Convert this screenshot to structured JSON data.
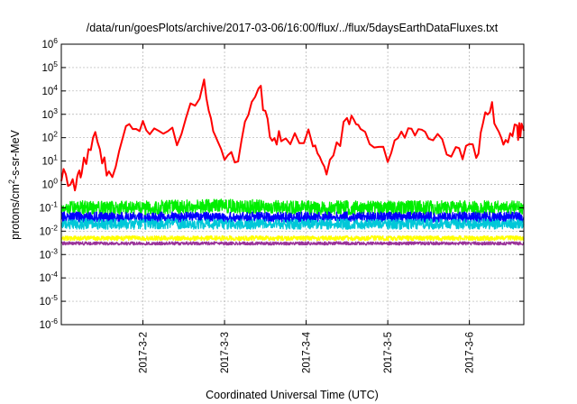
{
  "chart_data": {
    "type": "line",
    "title": "/data/run/goesPlots/archive/2017-03-06/16:00/flux/../flux/5daysEarthDataFluxes.txt",
    "xlabel": "Coordinated Universal Time (UTC)",
    "ylabel_main": "protons/cm",
    "ylabel_sup": "2",
    "ylabel_rest": "-s-sr-MeV",
    "y_scale": "log",
    "ylim": [
      1e-06,
      1000000.0
    ],
    "y_ticks": [
      {
        "value": 1e-06,
        "base": "10",
        "exp": "-6"
      },
      {
        "value": 1e-05,
        "base": "10",
        "exp": "-5"
      },
      {
        "value": 0.0001,
        "base": "10",
        "exp": "-4"
      },
      {
        "value": 0.001,
        "base": "10",
        "exp": "-3"
      },
      {
        "value": 0.01,
        "base": "10",
        "exp": "-2"
      },
      {
        "value": 0.1,
        "base": "10",
        "exp": "-1"
      },
      {
        "value": 1,
        "base": "10",
        "exp": "0"
      },
      {
        "value": 10,
        "base": "10",
        "exp": "1"
      },
      {
        "value": 100,
        "base": "10",
        "exp": "2"
      },
      {
        "value": 1000,
        "base": "10",
        "exp": "3"
      },
      {
        "value": 10000,
        "base": "10",
        "exp": "4"
      },
      {
        "value": 100000,
        "base": "10",
        "exp": "5"
      },
      {
        "value": 1000000,
        "base": "10",
        "exp": "6"
      }
    ],
    "xlim": [
      "2017-03-01 00:00",
      "2017-03-06 16:00"
    ],
    "x_ticks": [
      {
        "value": "2017-03-02 00:00",
        "label": "2017-3-2"
      },
      {
        "value": "2017-03-03 00:00",
        "label": "2017-3-3"
      },
      {
        "value": "2017-03-04 00:00",
        "label": "2017-3-4"
      },
      {
        "value": "2017-03-05 00:00",
        "label": "2017-3-5"
      },
      {
        "value": "2017-03-06 00:00",
        "label": "2017-3-6"
      }
    ],
    "grid": true,
    "legend": "none",
    "series": [
      {
        "color": "#ff0000",
        "x": [
          "2017-03-01 00:00",
          "2017-03-01 04:00",
          "2017-03-01 06:00",
          "2017-03-01 10:00",
          "2017-03-01 14:00",
          "2017-03-01 20:00",
          "2017-03-02 02:00",
          "2017-03-02 10:00",
          "2017-03-02 18:00",
          "2017-03-02 22:00",
          "2017-03-03 04:00",
          "2017-03-03 10:00",
          "2017-03-03 14:00",
          "2017-03-03 18:00",
          "2017-03-04 02:00",
          "2017-03-04 06:00",
          "2017-03-04 12:00",
          "2017-03-04 16:00",
          "2017-03-05 00:00",
          "2017-03-05 06:00",
          "2017-03-05 12:00",
          "2017-03-05 20:00",
          "2017-03-06 02:00",
          "2017-03-06 06:00",
          "2017-03-06 10:00",
          "2017-03-06 14:00",
          "2017-03-06 16:00"
        ],
        "y": [
          3,
          1,
          5,
          100,
          2,
          300,
          200,
          100,
          20000,
          30,
          20,
          20000,
          100,
          80,
          100,
          2,
          500,
          300,
          20,
          200,
          100,
          30,
          20,
          3000,
          50,
          200,
          200
        ]
      },
      {
        "color": "#00ee00",
        "x": [
          "2017-03-01 00:00",
          "2017-03-02 00:00",
          "2017-03-03 00:00",
          "2017-03-04 00:00",
          "2017-03-05 00:00",
          "2017-03-06 00:00",
          "2017-03-06 16:00"
        ],
        "y": [
          0.1,
          0.1,
          0.12,
          0.1,
          0.1,
          0.1,
          0.1
        ]
      },
      {
        "color": "#0000ff",
        "x": [
          "2017-03-01 00:00",
          "2017-03-02 00:00",
          "2017-03-03 00:00",
          "2017-03-04 00:00",
          "2017-03-05 00:00",
          "2017-03-06 00:00",
          "2017-03-06 16:00"
        ],
        "y": [
          0.04,
          0.04,
          0.04,
          0.04,
          0.04,
          0.04,
          0.04
        ]
      },
      {
        "color": "#00c8d8",
        "x": [
          "2017-03-01 00:00",
          "2017-03-02 00:00",
          "2017-03-03 00:00",
          "2017-03-04 00:00",
          "2017-03-05 00:00",
          "2017-03-06 00:00",
          "2017-03-06 16:00"
        ],
        "y": [
          0.02,
          0.02,
          0.02,
          0.02,
          0.02,
          0.02,
          0.02
        ]
      },
      {
        "color": "#ffff00",
        "x": [
          "2017-03-01 00:00",
          "2017-03-02 00:00",
          "2017-03-03 00:00",
          "2017-03-04 00:00",
          "2017-03-05 00:00",
          "2017-03-06 00:00",
          "2017-03-06 16:00"
        ],
        "y": [
          0.005,
          0.005,
          0.005,
          0.005,
          0.005,
          0.005,
          0.005
        ]
      },
      {
        "color": "#993399",
        "x": [
          "2017-03-01 00:00",
          "2017-03-02 00:00",
          "2017-03-03 00:00",
          "2017-03-04 00:00",
          "2017-03-05 00:00",
          "2017-03-06 00:00",
          "2017-03-06 16:00"
        ],
        "y": [
          0.003,
          0.003,
          0.003,
          0.003,
          0.003,
          0.003,
          0.003
        ]
      }
    ]
  }
}
